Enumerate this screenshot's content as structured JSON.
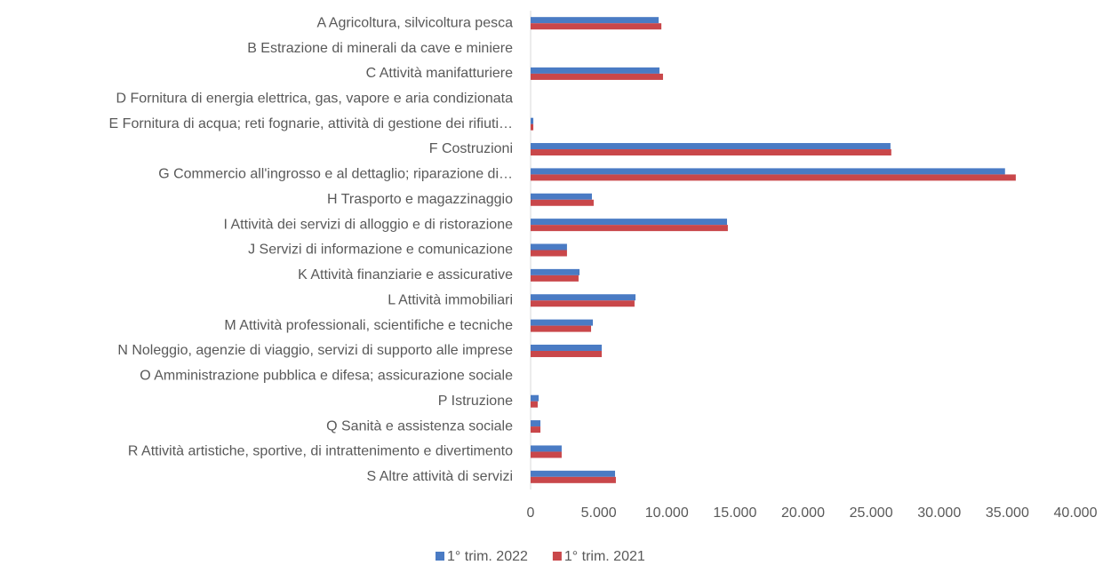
{
  "chart_data": {
    "type": "hbar",
    "categories": [
      "A Agricoltura, silvicoltura pesca",
      "B Estrazione di minerali da cave e miniere",
      "C Attività manifatturiere",
      "D Fornitura di energia elettrica, gas, vapore e aria condizionata",
      "E Fornitura di acqua; reti fognarie, attività di gestione dei rifiuti…",
      "F Costruzioni",
      "G Commercio all'ingrosso e al dettaglio; riparazione di…",
      "H Trasporto e magazzinaggio",
      "I Attività dei servizi di alloggio e di ristorazione",
      "J Servizi di informazione e comunicazione",
      "K Attività finanziarie e assicurative",
      "L Attività immobiliari",
      "M Attività professionali, scientifiche e tecniche",
      "N Noleggio, agenzie di viaggio, servizi di supporto alle imprese",
      "O Amministrazione pubblica e difesa; assicurazione sociale",
      "P Istruzione",
      "Q Sanità e assistenza sociale",
      "R Attività artistiche, sportive, di intrattenimento e divertimento",
      "S Altre attività di servizi"
    ],
    "series": [
      {
        "name": "1° trim. 2022",
        "color": "#4a7bc4",
        "values": [
          9400,
          0,
          9460,
          0,
          200,
          26420,
          34830,
          4500,
          14420,
          2670,
          3590,
          7700,
          4570,
          5220,
          0,
          590,
          720,
          2280,
          6200
        ]
      },
      {
        "name": "1° trim. 2021",
        "color": "#c9474a",
        "values": [
          9600,
          0,
          9720,
          0,
          200,
          26480,
          35620,
          4630,
          14480,
          2670,
          3520,
          7630,
          4440,
          5220,
          0,
          520,
          720,
          2280,
          6260
        ]
      }
    ],
    "xlim": [
      0,
      40000
    ],
    "xticks": [
      0,
      {
        "value": 5000,
        "label": "5.000"
      },
      {
        "value": 10000,
        "label": "10.000"
      },
      {
        "value": 15000,
        "label": "15.000"
      },
      {
        "value": 20000,
        "label": "20.000"
      },
      {
        "value": 25000,
        "label": "25.000"
      },
      {
        "value": 30000,
        "label": "30.000"
      },
      {
        "value": 35000,
        "label": "35.000"
      },
      {
        "value": 40000,
        "label": "40.000"
      }
    ],
    "legend": "bottom"
  }
}
